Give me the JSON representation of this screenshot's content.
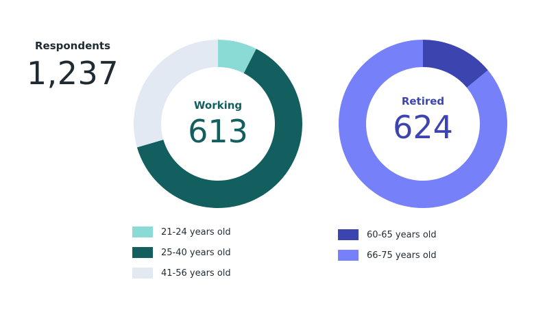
{
  "respondents": {
    "label": "Respondents",
    "value": "1,237"
  },
  "colors": {
    "teal_light": "#8adad6",
    "teal_dark": "#135e5e",
    "gray_light": "#e3e9f2",
    "indigo_dark": "#3c44b0",
    "indigo_light": "#7680f8",
    "working_text": "#135e5e",
    "retired_text": "#3c44b0"
  },
  "chart_data": [
    {
      "type": "pie",
      "title": "Working",
      "total": "613",
      "categories": [
        "21-24 years old",
        "25-40 years old",
        "41-56 years old"
      ],
      "values": [
        7.5,
        63,
        29.5
      ],
      "colors": [
        "#8adad6",
        "#135e5e",
        "#e3e9f2"
      ]
    },
    {
      "type": "pie",
      "title": "Retired",
      "total": "624",
      "categories": [
        "60-65 years old",
        "66-75 years old"
      ],
      "values": [
        14,
        86
      ],
      "colors": [
        "#3c44b0",
        "#7680f8"
      ]
    }
  ]
}
